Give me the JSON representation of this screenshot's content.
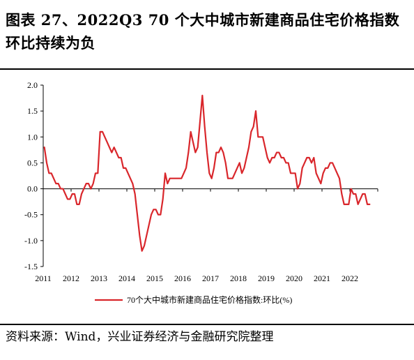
{
  "title": "图表 27、2022Q3 70 个大中城市新建商品住宅价格指数环比持续为负",
  "source": "资料来源：Wind，兴业证券经济与金融研究院整理",
  "colors": {
    "line": "#d9262b",
    "axis": "#000000"
  },
  "chart_data": {
    "type": "line",
    "title": "",
    "xlabel": "",
    "ylabel": "",
    "ylim": [
      -1.5,
      2.0
    ],
    "yticks": [
      "2.0",
      "1.5",
      "1.0",
      "0.5",
      "0.0",
      "-0.5",
      "-1.0",
      "-1.5"
    ],
    "xticks": [
      "2011",
      "2012",
      "2013",
      "2014",
      "2015",
      "2016",
      "2017",
      "2018",
      "2019",
      "2020",
      "2021",
      "2022"
    ],
    "grid": false,
    "legend": "bottom-center",
    "series": [
      {
        "name": "70个大中城市新建商品住宅价格指数:环比(%)",
        "color": "#d9262b",
        "points": [
          [
            "2011-01",
            0.8
          ],
          [
            "2011-02",
            0.5
          ],
          [
            "2011-03",
            0.3
          ],
          [
            "2011-04",
            0.3
          ],
          [
            "2011-05",
            0.2
          ],
          [
            "2011-06",
            0.1
          ],
          [
            "2011-07",
            0.1
          ],
          [
            "2011-08",
            0.0
          ],
          [
            "2011-09",
            0.0
          ],
          [
            "2011-10",
            -0.1
          ],
          [
            "2011-11",
            -0.2
          ],
          [
            "2011-12",
            -0.2
          ],
          [
            "2012-01",
            -0.1
          ],
          [
            "2012-02",
            -0.1
          ],
          [
            "2012-03",
            -0.3
          ],
          [
            "2012-04",
            -0.3
          ],
          [
            "2012-05",
            -0.1
          ],
          [
            "2012-06",
            0.0
          ],
          [
            "2012-07",
            0.1
          ],
          [
            "2012-08",
            0.1
          ],
          [
            "2012-09",
            0.0
          ],
          [
            "2012-10",
            0.1
          ],
          [
            "2012-11",
            0.3
          ],
          [
            "2012-12",
            0.3
          ],
          [
            "2013-01",
            1.1
          ],
          [
            "2013-02",
            1.1
          ],
          [
            "2013-03",
            1.0
          ],
          [
            "2013-04",
            0.9
          ],
          [
            "2013-05",
            0.8
          ],
          [
            "2013-06",
            0.7
          ],
          [
            "2013-07",
            0.8
          ],
          [
            "2013-08",
            0.7
          ],
          [
            "2013-09",
            0.6
          ],
          [
            "2013-10",
            0.6
          ],
          [
            "2013-11",
            0.4
          ],
          [
            "2013-12",
            0.4
          ],
          [
            "2014-01",
            0.3
          ],
          [
            "2014-02",
            0.2
          ],
          [
            "2014-03",
            0.1
          ],
          [
            "2014-04",
            -0.1
          ],
          [
            "2014-05",
            -0.5
          ],
          [
            "2014-06",
            -0.9
          ],
          [
            "2014-07",
            -1.2
          ],
          [
            "2014-08",
            -1.1
          ],
          [
            "2014-09",
            -0.9
          ],
          [
            "2014-10",
            -0.7
          ],
          [
            "2014-11",
            -0.5
          ],
          [
            "2014-12",
            -0.4
          ],
          [
            "2015-01",
            -0.4
          ],
          [
            "2015-02",
            -0.5
          ],
          [
            "2015-03",
            -0.5
          ],
          [
            "2015-04",
            -0.2
          ],
          [
            "2015-05",
            0.3
          ],
          [
            "2015-06",
            0.1
          ],
          [
            "2015-07",
            0.2
          ],
          [
            "2015-08",
            0.2
          ],
          [
            "2015-09",
            0.2
          ],
          [
            "2015-10",
            0.2
          ],
          [
            "2015-11",
            0.2
          ],
          [
            "2015-12",
            0.2
          ],
          [
            "2016-01",
            0.3
          ],
          [
            "2016-02",
            0.4
          ],
          [
            "2016-03",
            0.7
          ],
          [
            "2016-04",
            1.1
          ],
          [
            "2016-05",
            0.9
          ],
          [
            "2016-06",
            0.7
          ],
          [
            "2016-07",
            0.8
          ],
          [
            "2016-08",
            1.3
          ],
          [
            "2016-09",
            1.8
          ],
          [
            "2016-10",
            1.2
          ],
          [
            "2016-11",
            0.7
          ],
          [
            "2016-12",
            0.3
          ],
          [
            "2017-01",
            0.2
          ],
          [
            "2017-02",
            0.4
          ],
          [
            "2017-03",
            0.7
          ],
          [
            "2017-04",
            0.7
          ],
          [
            "2017-05",
            0.8
          ],
          [
            "2017-06",
            0.7
          ],
          [
            "2017-07",
            0.5
          ],
          [
            "2017-08",
            0.2
          ],
          [
            "2017-09",
            0.2
          ],
          [
            "2017-10",
            0.2
          ],
          [
            "2017-11",
            0.3
          ],
          [
            "2017-12",
            0.4
          ],
          [
            "2018-01",
            0.5
          ],
          [
            "2018-02",
            0.3
          ],
          [
            "2018-03",
            0.4
          ],
          [
            "2018-04",
            0.6
          ],
          [
            "2018-05",
            0.8
          ],
          [
            "2018-06",
            1.1
          ],
          [
            "2018-07",
            1.2
          ],
          [
            "2018-08",
            1.5
          ],
          [
            "2018-09",
            1.0
          ],
          [
            "2018-10",
            1.0
          ],
          [
            "2018-11",
            1.0
          ],
          [
            "2018-12",
            0.8
          ],
          [
            "2019-01",
            0.6
          ],
          [
            "2019-02",
            0.5
          ],
          [
            "2019-03",
            0.6
          ],
          [
            "2019-04",
            0.6
          ],
          [
            "2019-05",
            0.7
          ],
          [
            "2019-06",
            0.7
          ],
          [
            "2019-07",
            0.6
          ],
          [
            "2019-08",
            0.6
          ],
          [
            "2019-09",
            0.5
          ],
          [
            "2019-10",
            0.5
          ],
          [
            "2019-11",
            0.3
          ],
          [
            "2019-12",
            0.3
          ],
          [
            "2020-01",
            0.3
          ],
          [
            "2020-02",
            0.0
          ],
          [
            "2020-03",
            0.1
          ],
          [
            "2020-04",
            0.4
          ],
          [
            "2020-05",
            0.5
          ],
          [
            "2020-06",
            0.6
          ],
          [
            "2020-07",
            0.6
          ],
          [
            "2020-08",
            0.5
          ],
          [
            "2020-09",
            0.6
          ],
          [
            "2020-10",
            0.3
          ],
          [
            "2020-11",
            0.2
          ],
          [
            "2020-12",
            0.1
          ],
          [
            "2021-01",
            0.3
          ],
          [
            "2021-02",
            0.4
          ],
          [
            "2021-03",
            0.4
          ],
          [
            "2021-04",
            0.5
          ],
          [
            "2021-05",
            0.5
          ],
          [
            "2021-06",
            0.4
          ],
          [
            "2021-07",
            0.3
          ],
          [
            "2021-08",
            0.2
          ],
          [
            "2021-09",
            -0.1
          ],
          [
            "2021-10",
            -0.3
          ],
          [
            "2021-11",
            -0.3
          ],
          [
            "2021-12",
            -0.3
          ],
          [
            "2022-01",
            0.0
          ],
          [
            "2022-02",
            -0.1
          ],
          [
            "2022-03",
            -0.1
          ],
          [
            "2022-04",
            -0.3
          ],
          [
            "2022-05",
            -0.2
          ],
          [
            "2022-06",
            -0.1
          ],
          [
            "2022-07",
            -0.1
          ],
          [
            "2022-08",
            -0.3
          ],
          [
            "2022-09",
            -0.3
          ]
        ]
      }
    ]
  }
}
